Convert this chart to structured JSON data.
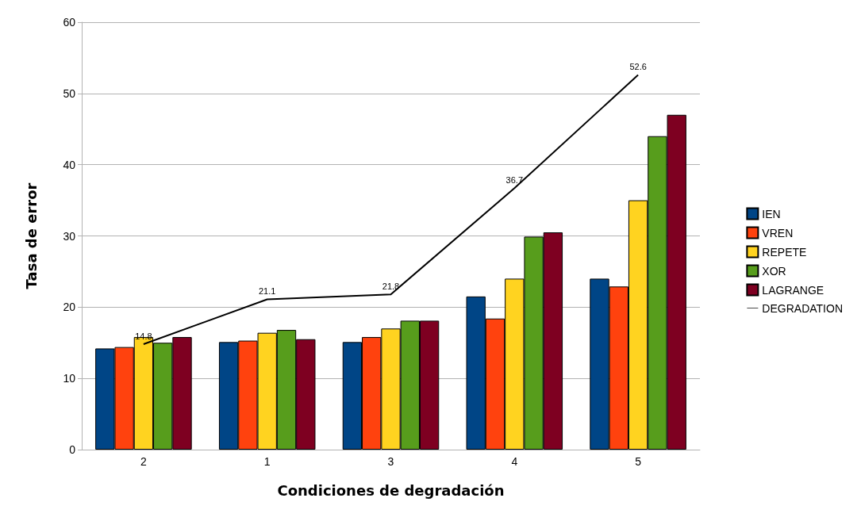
{
  "chart_data": {
    "type": "bar",
    "xlabel": "Condiciones de degradación",
    "ylabel": "Tasa de error",
    "categories": [
      "2",
      "1",
      "3",
      "4",
      "5"
    ],
    "ylim": [
      0,
      60
    ],
    "yticks": [
      0,
      10,
      20,
      30,
      40,
      50,
      60
    ],
    "grid": "y",
    "legend": "right",
    "marker": "none",
    "series": [
      {
        "name": "IEN",
        "color": "#004586",
        "values": [
          14.2,
          15.1,
          15.1,
          21.5,
          24.0
        ]
      },
      {
        "name": "VREN",
        "color": "#ff420e",
        "values": [
          14.4,
          15.3,
          15.8,
          18.4,
          22.9
        ]
      },
      {
        "name": "REPETE",
        "color": "#ffd320",
        "values": [
          15.8,
          16.4,
          17.0,
          24.0,
          35.0
        ]
      },
      {
        "name": "XOR",
        "color": "#579d1c",
        "values": [
          15.0,
          16.8,
          18.1,
          29.9,
          44.0
        ]
      },
      {
        "name": "LAGRANGE",
        "color": "#7e0021",
        "values": [
          15.8,
          15.5,
          18.1,
          30.5,
          47.0
        ]
      },
      {
        "name": "DEGRADATION",
        "type": "line",
        "color": "#000000",
        "values": [
          14.8,
          21.1,
          21.8,
          36.7,
          52.6
        ],
        "value_labels": [
          "14.8",
          "21.1",
          "21.8",
          "36.7",
          "52.6"
        ]
      }
    ]
  }
}
